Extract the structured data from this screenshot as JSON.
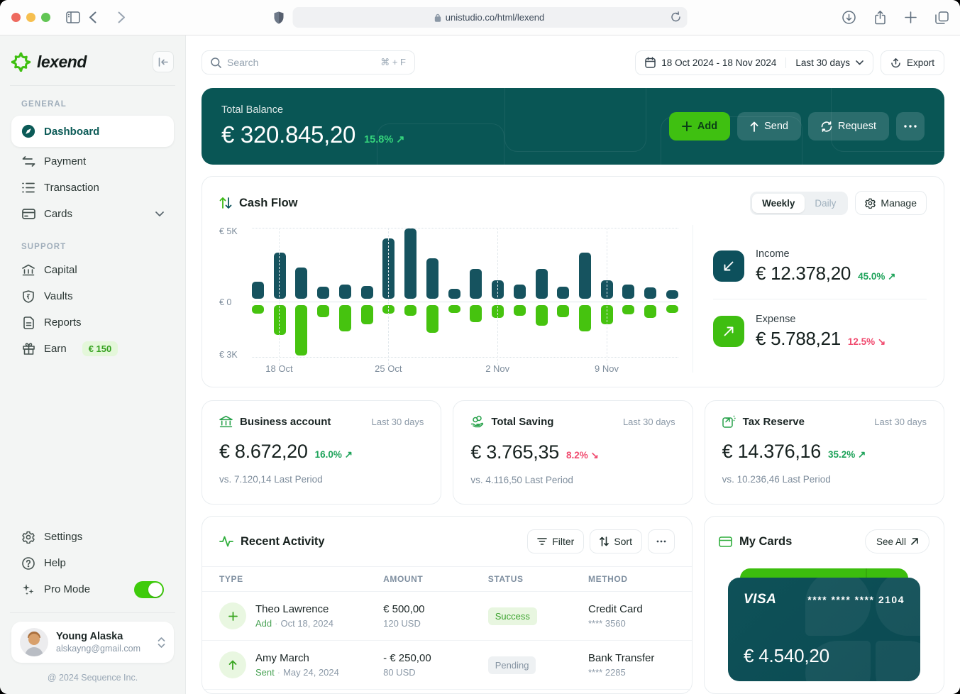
{
  "browser": {
    "url": "unistudio.co/html/lexend"
  },
  "sidebar": {
    "logo_text": "lexend",
    "general_label": "GENERAL",
    "support_label": "SUPPORT",
    "general_items": [
      {
        "label": "Dashboard"
      },
      {
        "label": "Payment"
      },
      {
        "label": "Transaction"
      },
      {
        "label": "Cards"
      }
    ],
    "support_items": [
      {
        "label": "Capital"
      },
      {
        "label": "Vaults"
      },
      {
        "label": "Reports"
      },
      {
        "label": "Earn",
        "badge": "€ 150"
      }
    ],
    "settings_label": "Settings",
    "help_label": "Help",
    "promode_label": "Pro Mode",
    "user": {
      "name": "Young Alaska",
      "email": "alskayng@gmail.com"
    },
    "copyright": "@ 2024 Sequence Inc."
  },
  "header": {
    "search_placeholder": "Search",
    "search_shortcut": "⌘ + F",
    "date_range": "18 Oct 2024 - 18 Nov 2024",
    "period": "Last 30 days",
    "export_label": "Export"
  },
  "balance": {
    "label": "Total Balance",
    "value": "€ 320.845,20",
    "change": "15.8% ↗",
    "add_label": "Add",
    "send_label": "Send",
    "request_label": "Request"
  },
  "cashflow": {
    "title": "Cash Flow",
    "tab_weekly": "Weekly",
    "tab_daily": "Daily",
    "manage_label": "Manage",
    "income": {
      "label": "Income",
      "value": "€ 12.378,20",
      "change": "45.0% ↗"
    },
    "expense": {
      "label": "Expense",
      "value": "€ 5.788,21",
      "change": "12.5% ↘"
    }
  },
  "chart_data": {
    "type": "bar",
    "title": "Cash Flow",
    "active_view": "Weekly",
    "y_axis_ticks": [
      "€ 5K",
      "€ 0",
      "€ 3K"
    ],
    "y_up_max": 5000,
    "y_down_max": 3000,
    "x_tick_labels": [
      "18 Oct",
      "25 Oct",
      "2 Nov",
      "9 Nov"
    ],
    "x_tick_positions_pct": [
      6.4,
      32.0,
      57.6,
      83.2
    ],
    "grid": "dashed-vertical",
    "legend": false,
    "series": [
      {
        "name": "Income",
        "color": "#16535f",
        "values": [
          1200,
          3300,
          2200,
          850,
          1000,
          900,
          4300,
          5000,
          2900,
          700,
          2100,
          1300,
          1000,
          2100,
          850,
          3300,
          1300,
          1000,
          800,
          600
        ]
      },
      {
        "name": "Expense",
        "color": "#46c30f",
        "values": [
          500,
          1700,
          2900,
          700,
          1500,
          1100,
          500,
          600,
          1600,
          450,
          1000,
          750,
          600,
          1200,
          700,
          1500,
          1100,
          550,
          750,
          450
        ]
      }
    ]
  },
  "stats": [
    {
      "title": "Business account",
      "period": "Last 30 days",
      "value": "€ 8.672,20",
      "change": "16.0% ↗",
      "direction": "up",
      "compare": "vs. 7.120,14 Last Period"
    },
    {
      "title": "Total Saving",
      "period": "Last 30 days",
      "value": "€ 3.765,35",
      "change": "8.2% ↘",
      "direction": "down",
      "compare": "vs. 4.116,50 Last Period"
    },
    {
      "title": "Tax Reserve",
      "period": "Last 30 days",
      "value": "€ 14.376,16",
      "change": "35.2% ↗",
      "direction": "up",
      "compare": "vs. 10.236,46 Last Period"
    }
  ],
  "activity": {
    "title": "Recent Activity",
    "filter_label": "Filter",
    "sort_label": "Sort",
    "columns": [
      "TYPE",
      "AMOUNT",
      "STATUS",
      "METHOD"
    ],
    "dot_separator": "·",
    "rows": [
      {
        "name": "Theo Lawrence",
        "action": "Add",
        "date": "Oct 18, 2024",
        "amount": "€ 500,00",
        "amount_sub": "120 USD",
        "status": "Success",
        "method": "Credit Card",
        "method_sub": "**** 3560"
      },
      {
        "name": "Amy March",
        "action": "Sent",
        "date": "May 24, 2024",
        "amount": "- € 250,00",
        "amount_sub": "80 USD",
        "status": "Pending",
        "method": "Bank Transfer",
        "method_sub": "**** 2285"
      }
    ]
  },
  "my_cards": {
    "title": "My Cards",
    "see_all": "See All",
    "card": {
      "brand": "VISA",
      "number": "**** **** **** 2104",
      "balance": "€ 4.540,20"
    }
  },
  "colors": {
    "teal": "#095655",
    "green": "#3fc011",
    "positive": "#1ea35a",
    "negative": "#f04a6e"
  }
}
